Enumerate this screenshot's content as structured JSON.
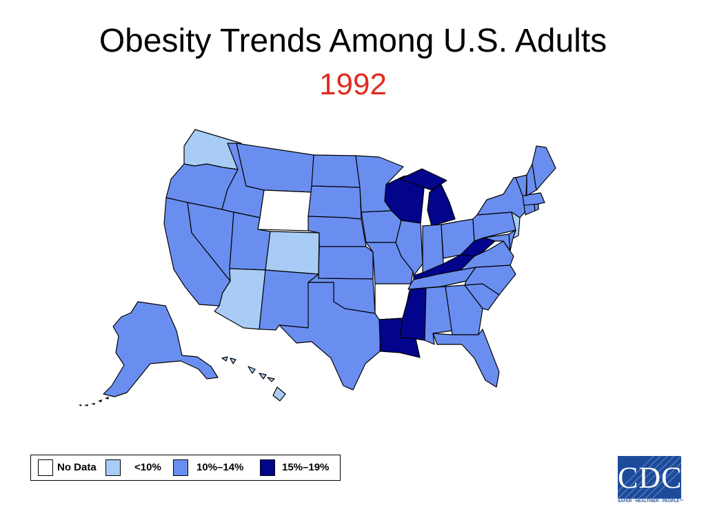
{
  "title": "Obesity Trends Among U.S. Adults",
  "subtitle": "1992",
  "colors": {
    "no_data": "#ffffff",
    "lt10": "#a8ccf5",
    "p10_14": "#6a8ef0",
    "p15_19": "#02058c",
    "title_accent": "#e02b1f",
    "state_border": "#000000"
  },
  "legend": {
    "items": [
      {
        "label": "No Data",
        "color_key": "no_data"
      },
      {
        "label": "<10%",
        "color_key": "lt10"
      },
      {
        "label": "10%–14%",
        "color_key": "p10_14"
      },
      {
        "label": "15%–19%",
        "color_key": "p15_19"
      }
    ]
  },
  "logo": {
    "text": "CDC",
    "tagline": "SAFER · HEALTHIER · PEOPLE™"
  },
  "states": {
    "WA": "lt10",
    "OR": "p10_14",
    "CA": "p10_14",
    "NV": "p10_14",
    "ID": "p10_14",
    "MT": "p10_14",
    "WY": "no_data",
    "UT": "p10_14",
    "CO": "lt10",
    "AZ": "lt10",
    "NM": "p10_14",
    "ND": "p10_14",
    "SD": "p10_14",
    "NE": "p10_14",
    "KS": "p10_14",
    "OK": "p10_14",
    "TX": "p10_14",
    "MN": "p10_14",
    "IA": "p10_14",
    "MO": "p10_14",
    "AR": "no_data",
    "LA": "p15_19",
    "WI": "p15_19",
    "IL": "p10_14",
    "MI": "p15_19",
    "IN": "p10_14",
    "OH": "p10_14",
    "KY": "p15_19",
    "TN": "p10_14",
    "MS": "p15_19",
    "AL": "p10_14",
    "GA": "p10_14",
    "FL": "p10_14",
    "SC": "p10_14",
    "NC": "p10_14",
    "VA": "p10_14",
    "WV": "p15_19",
    "PA": "p10_14",
    "NY": "p10_14",
    "NJ": "lt10",
    "DE": "p10_14",
    "MD": "p10_14",
    "CT": "p10_14",
    "RI": "p10_14",
    "MA": "p10_14",
    "VT": "p10_14",
    "NH": "p10_14",
    "ME": "p10_14",
    "AK": "p10_14",
    "HI": "lt10"
  }
}
